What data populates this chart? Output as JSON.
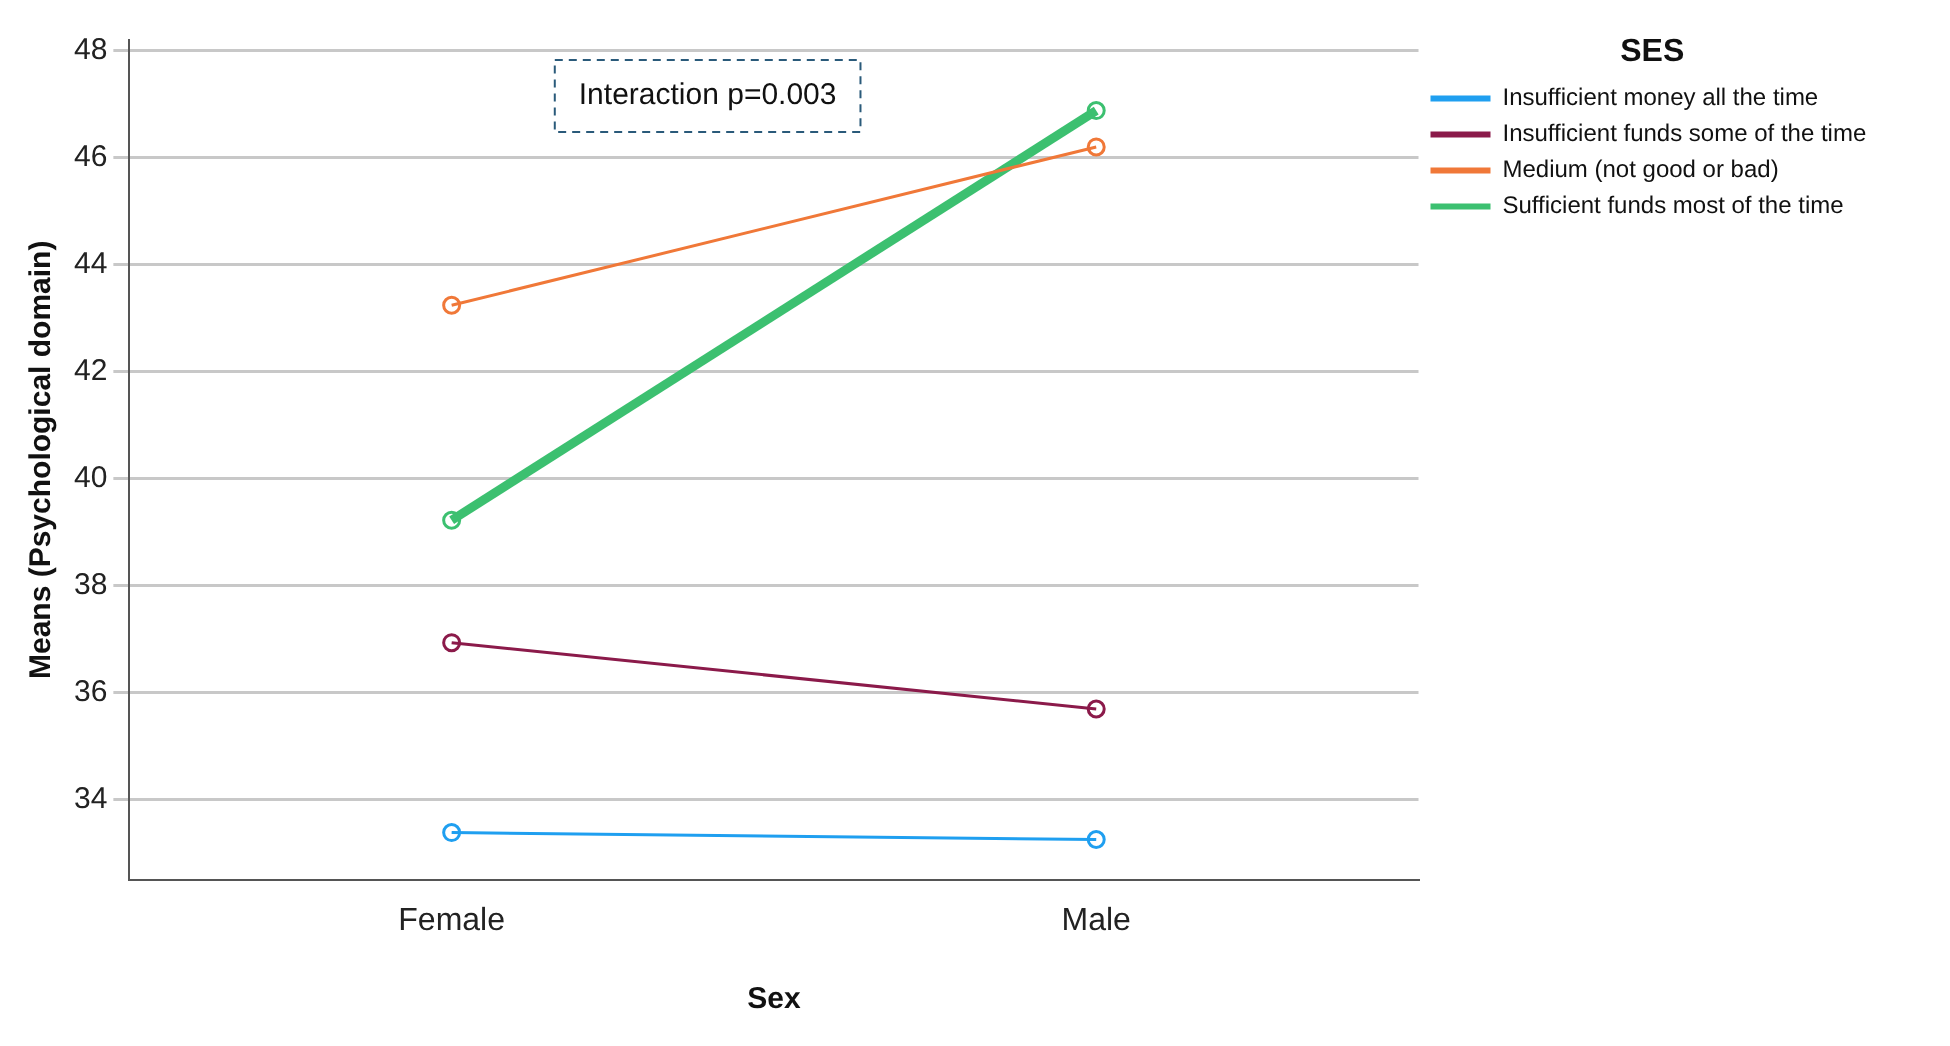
{
  "chart_data": {
    "type": "line",
    "xlabel": "Sex",
    "ylabel": "Means (Psychological domain)",
    "legend_title": "SES",
    "categories": [
      "Female",
      "Male"
    ],
    "series": [
      {
        "name": "Insufficient money all the time",
        "color": "#1f9ff0",
        "values": [
          33.38,
          33.25
        ]
      },
      {
        "name": "Insufficient funds some of the time",
        "color": "#8b1a4a",
        "values": [
          36.93,
          35.69
        ]
      },
      {
        "name": "Medium (not good or bad)",
        "color": "#f07838",
        "values": [
          43.24,
          46.2
        ]
      },
      {
        "name": "Sufficient funds most of the time",
        "color": "#3cc070",
        "values": [
          39.22,
          46.88
        ]
      }
    ],
    "ylim": [
      32.5,
      48.2
    ],
    "yticks": [
      34,
      36,
      38,
      40,
      42,
      44,
      46,
      48
    ],
    "grid": "y",
    "legend": "top right",
    "marker": "circle",
    "line_style": "solid",
    "annotations": [
      "Interaction p=0.003"
    ]
  }
}
